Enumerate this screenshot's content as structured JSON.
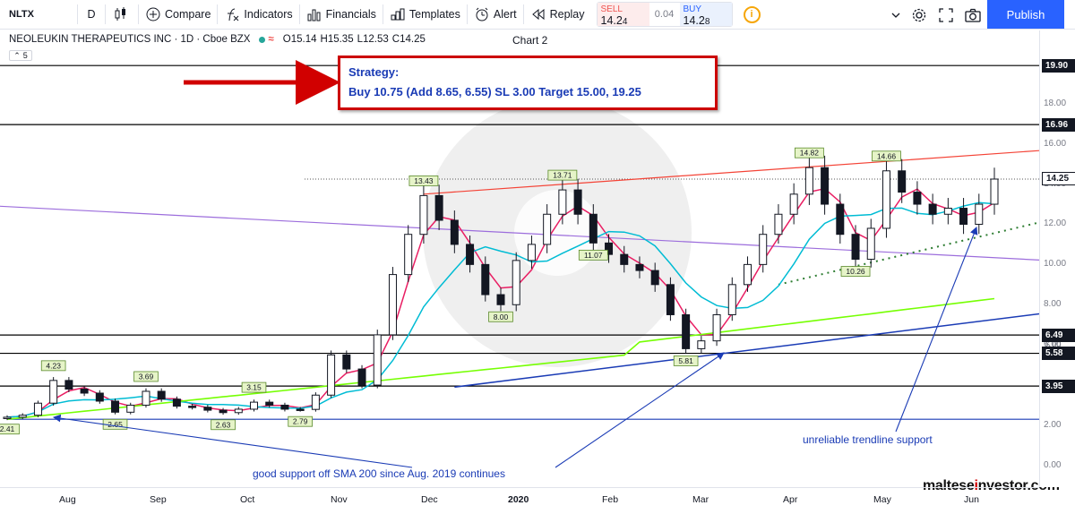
{
  "toolbar": {
    "symbol": "NLTX",
    "interval": "D",
    "compare": "Compare",
    "indicators": "Indicators",
    "financials": "Financials",
    "templates": "Templates",
    "alert": "Alert",
    "replay": "Replay",
    "sell_label": "SELL",
    "sell_price_main": "14.2",
    "sell_price_tail": "4",
    "spread": "0.04",
    "buy_label": "BUY",
    "buy_price_main": "14.2",
    "buy_price_tail": "8",
    "info": "i",
    "publish": "Publish",
    "icons": [
      "candles-icon",
      "compare-plus-icon",
      "indicators-fx-icon",
      "financials-bars-icon",
      "templates-icon",
      "alert-clock-icon",
      "replay-rewind-icon",
      "info-icon",
      "chevron-down-icon",
      "settings-gear-icon",
      "fullscreen-icon",
      "camera-icon"
    ]
  },
  "legend": {
    "title": "NEOLEUKIN THERAPEUTICS INC · 1D · Cboe BZX",
    "open": "O15.14",
    "high": "H15.35",
    "low": "L12.53",
    "close": "C14.25",
    "chart_name": "Chart 2",
    "collapse": "5"
  },
  "annotations": {
    "strategy_title": "Strategy:",
    "strategy_text": "Buy 10.75 (Add 8.65, 6.55) SL 3.00 Target 15.00, 19.25",
    "sma_note": "good support off SMA 200 since Aug. 2019 continues",
    "trend_note": "unreliable trendline support",
    "logo_prefix": "maltese",
    "logo_i": "i",
    "logo_suffix": "nvestor.com"
  },
  "colors": {
    "up": "#26a69a",
    "down": "#131722",
    "sma_fast": "#e91e63",
    "sma_mid": "#00bcd4",
    "sma_200": "#76ff03",
    "resistance": "#f44336",
    "support_trend": "#1a3bb5",
    "purple_trend": "#9c6ddc",
    "dotted_trend": "#2e7d32",
    "horizontal": "#000000",
    "annotation": "#1a3bb5",
    "strategy_border": "#cc0000"
  },
  "chart_data": {
    "type": "candlestick",
    "title": "NEOLEUKIN THERAPEUTICS INC · 1D · Cboe BZX",
    "x_labels": [
      "Aug",
      "Sep",
      "Oct",
      "Nov",
      "Dec",
      "2020",
      "Feb",
      "Mar",
      "Apr",
      "May",
      "Jun"
    ],
    "y_ticks": [
      0,
      2,
      4,
      6,
      8,
      10,
      12,
      14,
      16,
      18
    ],
    "y_tick_labels": [
      "0.00",
      "2.00",
      "4.00",
      "6.00",
      "8.00",
      "10.00",
      "12.00",
      "14.00",
      "16.00",
      "18.00"
    ],
    "ylim": [
      -0.9,
      21.2
    ],
    "close_series": [
      2.4,
      2.5,
      3.1,
      4.23,
      3.8,
      3.6,
      3.2,
      2.65,
      3.0,
      3.69,
      3.3,
      2.95,
      2.9,
      2.75,
      2.63,
      2.8,
      3.15,
      3.0,
      2.8,
      2.79,
      3.5,
      5.5,
      4.8,
      4.0,
      6.5,
      9.5,
      11.5,
      13.43,
      12.2,
      11.0,
      10.0,
      8.5,
      8.0,
      10.2,
      11.0,
      12.5,
      13.71,
      12.5,
      11.07,
      10.5,
      10.0,
      9.7,
      9.0,
      7.5,
      5.81,
      6.2,
      7.5,
      9.0,
      10.0,
      11.5,
      12.5,
      13.5,
      14.82,
      13.0,
      11.5,
      10.26,
      11.8,
      14.66,
      13.6,
      13.0,
      12.5,
      12.8,
      12.0,
      13.0,
      14.25
    ],
    "price_labels": [
      {
        "value": 4.23,
        "text": "4.23"
      },
      {
        "value": 2.41,
        "text": "2.41"
      },
      {
        "value": 3.69,
        "text": "3.69"
      },
      {
        "value": 2.65,
        "text": "2.65"
      },
      {
        "value": 2.63,
        "text": "2.63"
      },
      {
        "value": 3.15,
        "text": "3.15"
      },
      {
        "value": 2.79,
        "text": "2.79"
      },
      {
        "value": 13.43,
        "text": "13.43"
      },
      {
        "value": 8.0,
        "text": "8.00"
      },
      {
        "value": 13.71,
        "text": "13.71"
      },
      {
        "value": 11.07,
        "text": "11.07"
      },
      {
        "value": 5.81,
        "text": "5.81"
      },
      {
        "value": 14.82,
        "text": "14.82"
      },
      {
        "value": 14.66,
        "text": "14.66"
      },
      {
        "value": 10.26,
        "text": "10.26"
      }
    ],
    "horizontal_levels": [
      {
        "value": 19.9,
        "text": "19.90"
      },
      {
        "value": 16.96,
        "text": "16.96"
      },
      {
        "value": 14.25,
        "text": "14.25"
      },
      {
        "value": 6.49,
        "text": "6.49"
      },
      {
        "value": 5.58,
        "text": "5.58"
      },
      {
        "value": 3.95,
        "text": "3.95"
      }
    ],
    "axis_minor_label": "6.00",
    "series": [
      {
        "name": "SMA fast",
        "color": "#e91e63"
      },
      {
        "name": "SMA mid",
        "color": "#00bcd4"
      },
      {
        "name": "SMA 200",
        "color": "#76ff03"
      }
    ]
  }
}
